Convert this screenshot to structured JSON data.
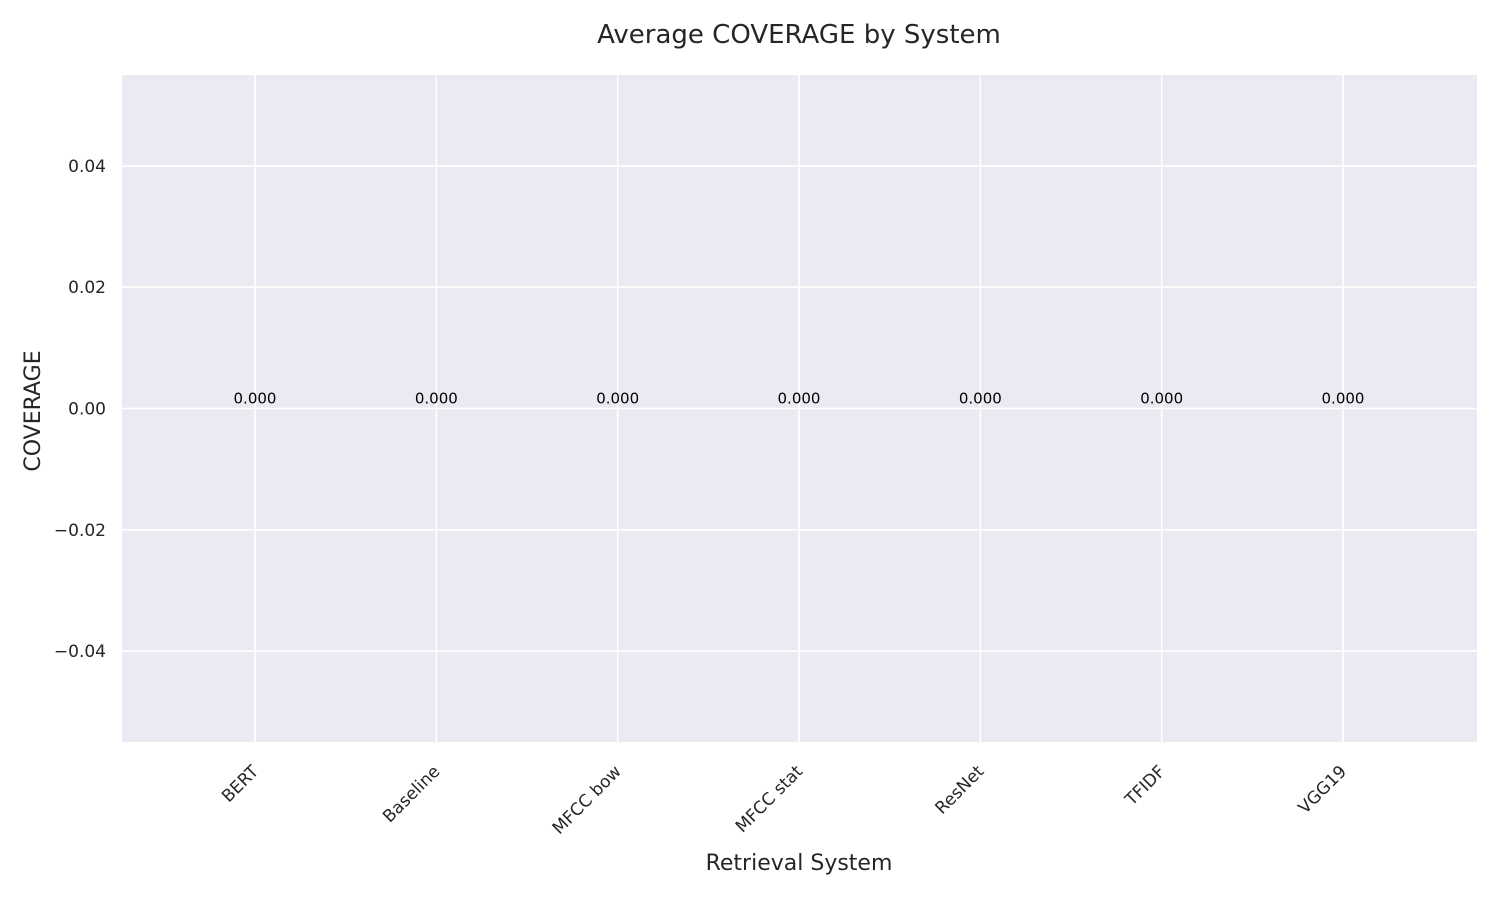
{
  "chart_data": {
    "type": "bar",
    "title": "Average COVERAGE by System",
    "xlabel": "Retrieval System",
    "ylabel": "COVERAGE",
    "categories": [
      "BERT",
      "Baseline",
      "MFCC bow",
      "MFCC stat",
      "ResNet",
      "TFIDF",
      "VGG19"
    ],
    "values": [
      0.0,
      0.0,
      0.0,
      0.0,
      0.0,
      0.0,
      0.0
    ],
    "data_labels": [
      "0.000",
      "0.000",
      "0.000",
      "0.000",
      "0.000",
      "0.000",
      "0.000"
    ],
    "ylim": [
      -0.055,
      0.055
    ],
    "yticks": [
      -0.04,
      -0.02,
      0.0,
      0.02,
      0.04
    ],
    "ytick_labels": [
      "−0.04",
      "−0.02",
      "0.00",
      "0.02",
      "0.04"
    ],
    "grid": true,
    "colors": {
      "plot_background": "#eaeaf2",
      "grid": "#ffffff",
      "bar": "#4c72b0",
      "text": "#262626"
    }
  }
}
